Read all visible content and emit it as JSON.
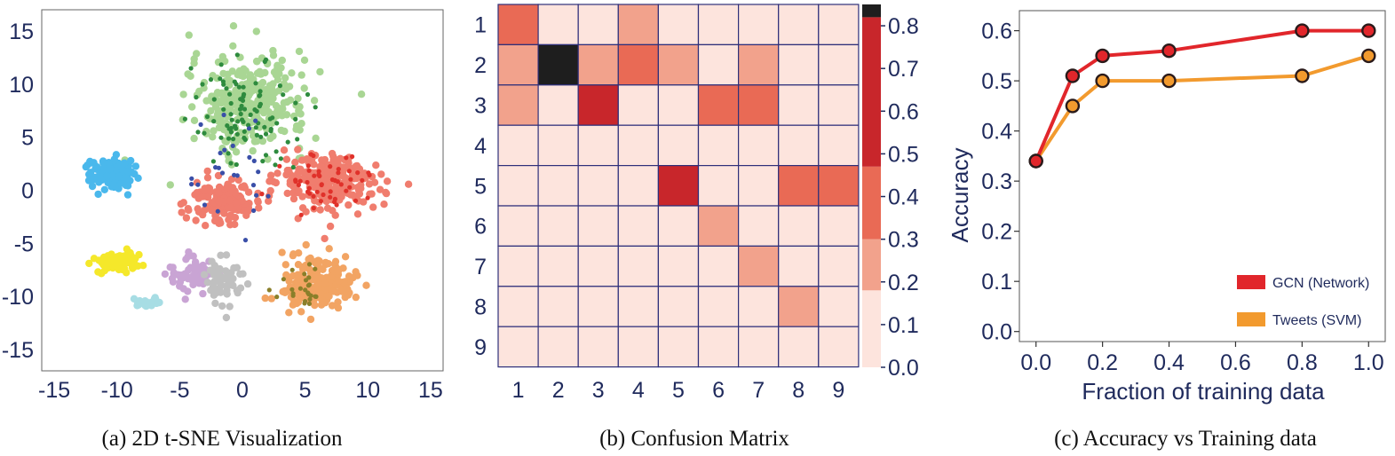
{
  "captions": {
    "a": "(a) 2D t-SNE Visualization",
    "b": "(b) Confusion Matrix",
    "c": "(c) Accuracy vs Training data"
  },
  "chart_data": [
    {
      "type": "scatter",
      "title": "",
      "xlabel": "",
      "ylabel": "",
      "xlim": [
        -16,
        16
      ],
      "ylim": [
        -17,
        17
      ],
      "x_ticks": [
        "-15",
        "-10",
        "-5",
        "0",
        "5",
        "10",
        "15"
      ],
      "y_ticks": [
        "15",
        "10",
        "5",
        "0",
        "-5",
        "-10",
        "-15"
      ],
      "grid": false,
      "clusters": [
        {
          "color": "#a9d694",
          "center": [
            0.5,
            8.2
          ],
          "spread": [
            4.2,
            4.0
          ],
          "count": 320
        },
        {
          "color": "#f07d6e",
          "center": [
            7.0,
            0.8
          ],
          "spread": [
            3.6,
            2.4
          ],
          "count": 260
        },
        {
          "color": "#f07d6e",
          "center": [
            -1.5,
            -1.0
          ],
          "spread": [
            2.5,
            1.8
          ],
          "count": 140
        },
        {
          "color": "#4ab8ec",
          "center": [
            -10.5,
            1.5
          ],
          "spread": [
            1.6,
            1.3
          ],
          "count": 120
        },
        {
          "color": "#f5e82a",
          "center": [
            -10.0,
            -6.8
          ],
          "spread": [
            1.8,
            0.8
          ],
          "count": 80
        },
        {
          "color": "#f2a463",
          "center": [
            6.0,
            -8.8
          ],
          "spread": [
            2.6,
            2.2
          ],
          "count": 200
        },
        {
          "color": "#c9a4d4",
          "center": [
            -4.0,
            -8.0
          ],
          "spread": [
            1.6,
            1.4
          ],
          "count": 70
        },
        {
          "color": "#c0c0c0",
          "center": [
            -1.5,
            -8.5
          ],
          "spread": [
            1.2,
            2.0
          ],
          "count": 60
        },
        {
          "color": "#a7dde4",
          "center": [
            -7.5,
            -10.5
          ],
          "spread": [
            1.0,
            0.5
          ],
          "count": 25
        },
        {
          "color": "#2e8b3e",
          "center": [
            0.0,
            7.5
          ],
          "spread": [
            4.0,
            4.5
          ],
          "count": 90
        },
        {
          "color": "#e0312a",
          "center": [
            6.5,
            0.5
          ],
          "spread": [
            3.5,
            2.5
          ],
          "count": 50
        },
        {
          "color": "#3a4fa8",
          "center": [
            -1.0,
            1.0
          ],
          "spread": [
            4.5,
            5.0
          ],
          "count": 25
        },
        {
          "color": "#8a7f2a",
          "center": [
            5.0,
            -9.0
          ],
          "spread": [
            2.5,
            2.0
          ],
          "count": 25
        }
      ]
    },
    {
      "type": "heatmap",
      "title": "",
      "x_labels": [
        "1",
        "2",
        "3",
        "4",
        "5",
        "6",
        "7",
        "8",
        "9"
      ],
      "y_labels": [
        "1",
        "2",
        "3",
        "4",
        "5",
        "6",
        "7",
        "8",
        "9"
      ],
      "values": [
        [
          0.4,
          0.05,
          0.05,
          0.2,
          0.02,
          0.03,
          0.05,
          0.05,
          0.03
        ],
        [
          0.2,
          0.9,
          0.2,
          0.35,
          0.2,
          0.05,
          0.2,
          0.05,
          0.05
        ],
        [
          0.2,
          0.05,
          0.6,
          0.05,
          0.05,
          0.35,
          0.35,
          0.05,
          0.05
        ],
        [
          0.02,
          0.02,
          0.02,
          0.05,
          0.02,
          0.02,
          0.02,
          0.02,
          0.02
        ],
        [
          0.05,
          0.05,
          0.05,
          0.05,
          0.6,
          0.05,
          0.02,
          0.35,
          0.35
        ],
        [
          0.02,
          0.02,
          0.02,
          0.05,
          0.02,
          0.2,
          0.02,
          0.02,
          0.05
        ],
        [
          0.02,
          0.02,
          0.02,
          0.02,
          0.02,
          0.02,
          0.2,
          0.02,
          0.02
        ],
        [
          0.02,
          0.02,
          0.02,
          0.02,
          0.02,
          0.02,
          0.02,
          0.2,
          0.05
        ],
        [
          0.02,
          0.02,
          0.02,
          0.02,
          0.02,
          0.02,
          0.02,
          0.02,
          0.02
        ]
      ],
      "colorbar": {
        "ticks": [
          "0.0",
          "0.1",
          "0.2",
          "0.3",
          "0.4",
          "0.5",
          "0.6",
          "0.7",
          "0.8"
        ],
        "range": [
          0,
          0.85
        ],
        "bands": [
          {
            "from": 0.0,
            "to": 0.18,
            "color": "#fde4dd"
          },
          {
            "from": 0.18,
            "to": 0.3,
            "color": "#f2a28c"
          },
          {
            "from": 0.3,
            "to": 0.47,
            "color": "#e96a55"
          },
          {
            "from": 0.47,
            "to": 0.82,
            "color": "#c8262b"
          },
          {
            "from": 0.82,
            "to": 0.85,
            "color": "#1e1e1e"
          }
        ]
      }
    },
    {
      "type": "line",
      "title": "",
      "xlabel": "Fraction of training data",
      "ylabel": "Accuracy",
      "xlim": [
        -0.05,
        1.05
      ],
      "ylim": [
        -0.02,
        0.64
      ],
      "x_ticks": [
        "0.0",
        "0.2",
        "0.4",
        "0.6",
        "0.8",
        "1.0"
      ],
      "y_ticks": [
        "0.0",
        "0.1",
        "0.2",
        "0.3",
        "0.4",
        "0.5",
        "0.6"
      ],
      "legend_position": "bottom-right",
      "series": [
        {
          "name": "GCN (Network)",
          "color": "#e1262b",
          "x": [
            0.0,
            0.11,
            0.2,
            0.4,
            0.8,
            1.0
          ],
          "y": [
            0.34,
            0.51,
            0.55,
            0.56,
            0.6,
            0.6
          ]
        },
        {
          "name": "Tweets (SVM)",
          "color": "#f29a2e",
          "x": [
            0.0,
            0.11,
            0.2,
            0.4,
            0.8,
            1.0
          ],
          "y": [
            0.34,
            0.45,
            0.5,
            0.5,
            0.51,
            0.55
          ]
        }
      ]
    }
  ]
}
